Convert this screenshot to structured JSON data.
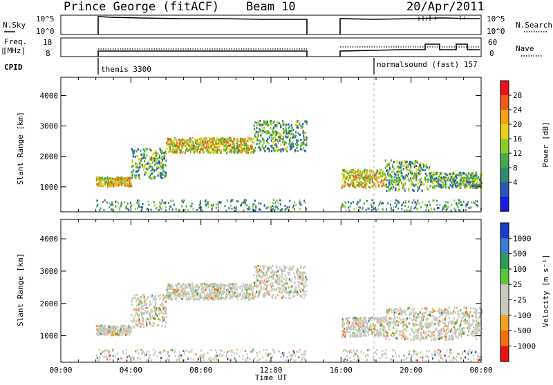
{
  "header": {
    "station": "Prince George (fitACF)",
    "beam": "Beam 10",
    "date": "20/Apr/2011"
  },
  "panels": {
    "nsky": {
      "label": "N.Sky",
      "left_ticks": [
        "10^5",
        "10^0"
      ],
      "right_ticks": [
        "10^5",
        "10^0"
      ],
      "right_label": "N.Search"
    },
    "freq": {
      "label_line1": "Freq.",
      "label_line2": "[MHz]",
      "left_ticks": [
        "18",
        "8"
      ],
      "right_ticks": [
        "60",
        "0"
      ],
      "right_label": "Nave"
    },
    "cpid": {
      "label": "CPID",
      "segments": [
        {
          "text": "themis 3300",
          "start_hour": 2.0
        },
        {
          "text": "normalsound (fast) 157",
          "start_hour": 18.0
        }
      ]
    }
  },
  "chart_data": [
    {
      "type": "heatmap",
      "name": "power",
      "ylabel": "Slant Range [km]",
      "ylim": [
        180,
        4600
      ],
      "yticks": [
        1000,
        2000,
        3000,
        4000
      ],
      "xlim": [
        0,
        24
      ],
      "colorbar": {
        "label": "Power [dB]",
        "ticks": [
          "28",
          "24",
          "20",
          "16",
          "12",
          "8",
          "4"
        ],
        "colors": [
          "#e8131b",
          "#f25a1c",
          "#f7a216",
          "#e8d21c",
          "#8ccc2a",
          "#47a94a",
          "#2e8a6e",
          "#2a55b8",
          "#1a1ae6"
        ]
      },
      "echo_bands": [
        {
          "t0": 2.0,
          "t1": 4.0,
          "r0": 1050,
          "r1": 1350,
          "level": "high"
        },
        {
          "t0": 4.0,
          "t1": 6.0,
          "r0": 1300,
          "r1": 2300,
          "level": "medium"
        },
        {
          "t0": 6.0,
          "t1": 11.0,
          "r0": 2150,
          "r1": 2650,
          "level": "high"
        },
        {
          "t0": 11.0,
          "t1": 14.0,
          "r0": 2200,
          "r1": 3200,
          "level": "medium"
        },
        {
          "t0": 16.0,
          "t1": 18.5,
          "r0": 1000,
          "r1": 1600,
          "level": "high"
        },
        {
          "t0": 18.5,
          "t1": 21.0,
          "r0": 900,
          "r1": 1900,
          "level": "medium"
        },
        {
          "t0": 21.0,
          "t1": 24.0,
          "r0": 1000,
          "r1": 1500,
          "level": "medium"
        }
      ]
    },
    {
      "type": "heatmap",
      "name": "velocity",
      "ylabel": "Slant Range [km]",
      "ylim": [
        180,
        4600
      ],
      "yticks": [
        1000,
        2000,
        3000,
        4000
      ],
      "xlim": [
        0,
        24
      ],
      "xticks": [
        "00:00",
        "04:00",
        "08:00",
        "12:00",
        "16:00",
        "20:00",
        "00:00"
      ],
      "xlabel": "Time UT",
      "colorbar": {
        "label": "Velocity [m s⁻¹]",
        "ticks": [
          "1000",
          "500",
          "100",
          "25",
          "-25",
          "-100",
          "-500",
          "-1000"
        ],
        "colors": [
          "#1a3cc8",
          "#3a7ad0",
          "#2e9a5a",
          "#5cc43a",
          "#c8c8c0",
          "#c8c8c0",
          "#f5a020",
          "#f07010",
          "#e81010"
        ]
      },
      "echo_bands": [
        {
          "t0": 2.0,
          "t1": 4.0,
          "r0": 1050,
          "r1": 1350,
          "level": "ground"
        },
        {
          "t0": 4.0,
          "t1": 6.0,
          "r0": 1300,
          "r1": 2300,
          "level": "ground"
        },
        {
          "t0": 6.0,
          "t1": 11.0,
          "r0": 2150,
          "r1": 2650,
          "level": "ground"
        },
        {
          "t0": 11.0,
          "t1": 14.0,
          "r0": 2200,
          "r1": 3200,
          "level": "ground"
        },
        {
          "t0": 16.0,
          "t1": 18.5,
          "r0": 1000,
          "r1": 1600,
          "level": "ground"
        },
        {
          "t0": 18.5,
          "t1": 24.0,
          "r0": 900,
          "r1": 1900,
          "level": "ground"
        }
      ]
    }
  ]
}
